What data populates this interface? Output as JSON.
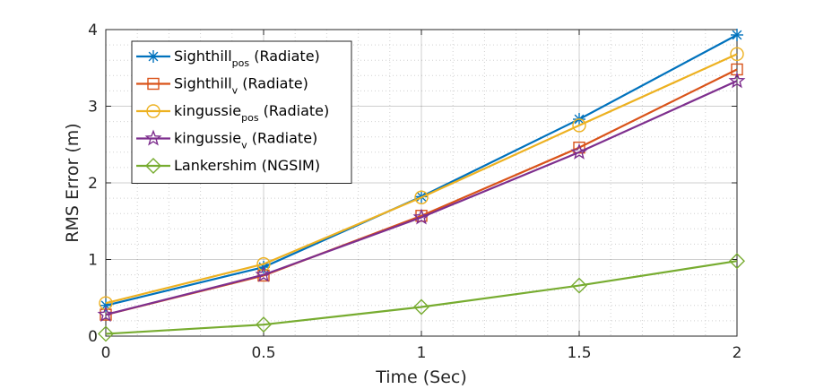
{
  "chart_data": {
    "type": "line",
    "xlabel": "Time (Sec)",
    "ylabel": "RMS Error (m)",
    "xlim": [
      0,
      2
    ],
    "ylim": [
      0,
      4
    ],
    "xticks": [
      0,
      0.5,
      1,
      1.5,
      2
    ],
    "xtick_labels": [
      "0",
      "0.5",
      "1",
      "1.5",
      "2"
    ],
    "yticks": [
      0,
      1,
      2,
      3,
      4
    ],
    "ytick_labels": [
      "0",
      "1",
      "2",
      "3",
      "4"
    ],
    "grid": true,
    "minor_grid": true,
    "legend_position": "top-left",
    "x": [
      0,
      0.5,
      1,
      1.5,
      2
    ],
    "series": [
      {
        "name_main": "Sighthill",
        "name_sub": "pos",
        "name_suffix": " (Radiate)",
        "color": "#0072BD",
        "marker": "asterisk",
        "values": [
          0.4,
          0.9,
          1.82,
          2.83,
          3.93
        ]
      },
      {
        "name_main": "Sighthill",
        "name_sub": "v",
        "name_suffix": " (Radiate)",
        "color": "#D95319",
        "marker": "square",
        "values": [
          0.28,
          0.79,
          1.57,
          2.46,
          3.48
        ]
      },
      {
        "name_main": "kingussie",
        "name_sub": "pos",
        "name_suffix": " (Radiate)",
        "color": "#EDB120",
        "marker": "circle",
        "values": [
          0.43,
          0.94,
          1.81,
          2.75,
          3.68
        ]
      },
      {
        "name_main": "kingussie",
        "name_sub": "v",
        "name_suffix": " (Radiate)",
        "color": "#7E2F8E",
        "marker": "pentagram",
        "values": [
          0.28,
          0.8,
          1.55,
          2.4,
          3.33
        ]
      },
      {
        "name_main": "Lankershim (NGSIM)",
        "name_sub": "",
        "name_suffix": "",
        "color": "#77AC30",
        "marker": "diamond",
        "values": [
          0.03,
          0.15,
          0.38,
          0.66,
          0.98
        ]
      }
    ]
  }
}
